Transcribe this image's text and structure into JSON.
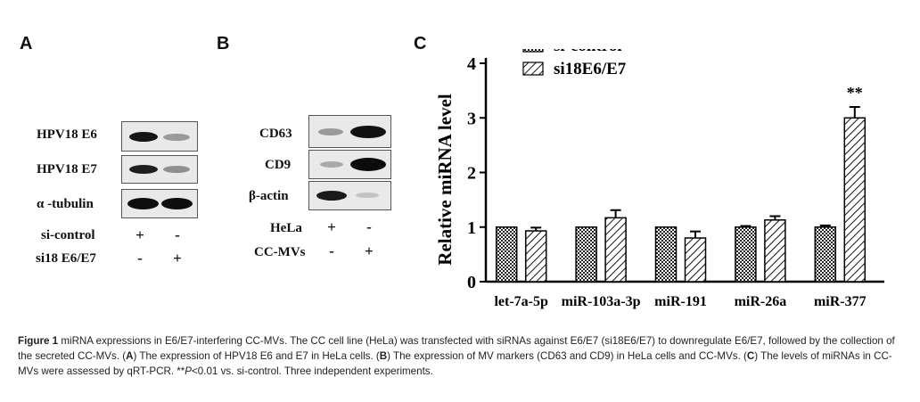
{
  "panels": {
    "a": {
      "letter": "A",
      "rows": [
        "HPV18 E6",
        "HPV18 E7",
        "α -tubulin"
      ],
      "conditions": [
        {
          "label": "si-control",
          "signs": [
            "+",
            "-"
          ]
        },
        {
          "label": "si18 E6/E7",
          "signs": [
            "-",
            "+"
          ]
        }
      ]
    },
    "b": {
      "letter": "B",
      "rows": [
        "CD63",
        "CD9",
        "β-actin"
      ],
      "conditions": [
        {
          "label": "HeLa",
          "signs": [
            "+",
            "-"
          ]
        },
        {
          "label": "CC-MVs",
          "signs": [
            "-",
            "+"
          ]
        }
      ]
    },
    "c": {
      "letter": "C"
    }
  },
  "chart_data": {
    "type": "bar",
    "ylabel": "Relative miRNA level",
    "xlabel": "",
    "ylim": [
      0,
      4
    ],
    "yticks": [
      "0",
      "1",
      "2",
      "3",
      "4"
    ],
    "categories": [
      "let-7a-5p",
      "miR-103a-3p",
      "miR-191",
      "miR-26a",
      "miR-377"
    ],
    "series": [
      {
        "name": "si-control",
        "pattern": "crosshatch",
        "values": [
          1.0,
          1.0,
          1.0,
          1.0,
          1.0
        ],
        "errors": [
          0.0,
          0.0,
          0.0,
          0.02,
          0.03
        ]
      },
      {
        "name": "si18E6/E7",
        "pattern": "diagonal",
        "values": [
          0.93,
          1.17,
          0.8,
          1.13,
          3.0
        ],
        "errors": [
          0.06,
          0.14,
          0.12,
          0.07,
          0.2
        ]
      }
    ],
    "annotations": [
      {
        "category": "miR-377",
        "text": "**"
      }
    ],
    "legend_position": "top-left",
    "grid": false
  },
  "caption": {
    "label": "Figure 1",
    "text_1": " miRNA expressions in E6/E7-interfering CC-MVs. The CC cell line (HeLa) was transfected with siRNAs against E6/E7 (si18E6/E7) to downregulate E6/E7, followed by the collection of the secreted CC-MVs. (",
    "ref_a": "A",
    "text_2": ") The expression of HPV18 E6 and E7 in HeLa cells. (",
    "ref_b": "B",
    "text_3": ") The expression of MV markers (CD63 and CD9) in HeLa cells and CC-MVs. (",
    "ref_c": "C",
    "text_4": ") The levels of miRNAs in CC-MVs were assessed by qRT-PCR. **",
    "p_italic": "P",
    "text_5": "<0.01 vs. si-control. Three independent experiments."
  }
}
